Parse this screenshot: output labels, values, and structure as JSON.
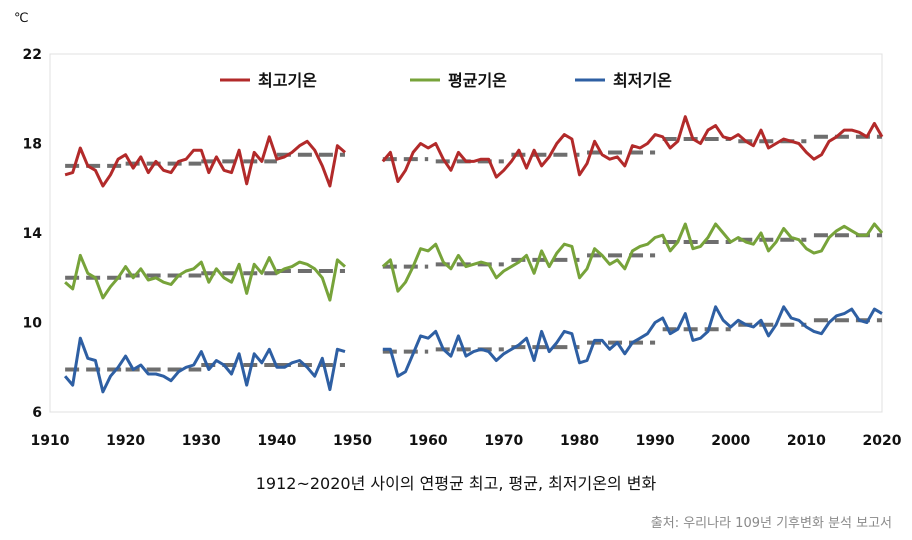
{
  "chart_data": {
    "type": "line",
    "unit_label": "℃",
    "ylim": [
      6,
      22
    ],
    "yticks": [
      6,
      10,
      14,
      18,
      22
    ],
    "xlim": [
      1910,
      2020
    ],
    "xticks": [
      1910,
      1920,
      1930,
      1940,
      1950,
      1960,
      1970,
      1980,
      1990,
      2000,
      2010,
      2020
    ],
    "legend_position": "top",
    "grid": false,
    "note": "No data plotted for 1949–1953",
    "series": [
      {
        "name": "최고기온",
        "color": "#b22a2a",
        "trend_color": "#6e6e6e",
        "segments": [
          {
            "x": [
              1912,
              1913,
              1914,
              1915,
              1916,
              1917,
              1918,
              1919,
              1920,
              1921,
              1922,
              1923,
              1924,
              1925,
              1926,
              1927,
              1928,
              1929,
              1930,
              1931,
              1932,
              1933,
              1934,
              1935,
              1936,
              1937,
              1938,
              1939,
              1940,
              1941,
              1942,
              1943,
              1944,
              1945,
              1946,
              1947,
              1948,
              1949
            ],
            "y": [
              16.6,
              16.7,
              17.8,
              17.0,
              16.8,
              16.1,
              16.6,
              17.3,
              17.5,
              16.9,
              17.4,
              16.7,
              17.2,
              16.8,
              16.7,
              17.2,
              17.3,
              17.7,
              17.7,
              16.7,
              17.4,
              16.8,
              16.7,
              17.7,
              16.2,
              17.6,
              17.2,
              18.3,
              17.3,
              17.4,
              17.6,
              17.9,
              18.1,
              17.7,
              17.0,
              16.1,
              17.9,
              17.6
            ]
          },
          {
            "x": [
              1954,
              1955,
              1956,
              1957,
              1958,
              1959,
              1960,
              1961,
              1962,
              1963,
              1964,
              1965,
              1966,
              1967,
              1968,
              1969,
              1970,
              1971,
              1972,
              1973,
              1974,
              1975,
              1976,
              1977,
              1978,
              1979,
              1980,
              1981,
              1982,
              1983,
              1984,
              1985,
              1986,
              1987,
              1988,
              1989,
              1990,
              1991,
              1992,
              1993,
              1994,
              1995,
              1996,
              1997,
              1998,
              1999,
              2000,
              2001,
              2002,
              2003,
              2004,
              2005,
              2006,
              2007,
              2008,
              2009,
              2010,
              2011,
              2012,
              2013,
              2014,
              2015,
              2016,
              2017,
              2018,
              2019,
              2020
            ],
            "y": [
              17.2,
              17.6,
              16.3,
              16.8,
              17.6,
              18.0,
              17.8,
              18.0,
              17.3,
              16.8,
              17.6,
              17.2,
              17.2,
              17.3,
              17.3,
              16.5,
              16.8,
              17.2,
              17.7,
              16.9,
              17.7,
              17.0,
              17.4,
              18.0,
              18.4,
              18.2,
              16.6,
              17.1,
              18.1,
              17.5,
              17.3,
              17.4,
              17.0,
              17.9,
              17.8,
              18.0,
              18.4,
              18.3,
              17.8,
              18.1,
              19.2,
              18.2,
              18.0,
              18.6,
              18.8,
              18.3,
              18.2,
              18.4,
              18.1,
              17.9,
              18.6,
              17.8,
              18.0,
              18.2,
              18.1,
              18.0,
              17.6,
              17.3,
              17.5,
              18.1,
              18.3,
              18.6,
              18.6,
              18.5,
              18.3,
              18.9,
              18.3
            ]
          }
        ],
        "trend": [
          {
            "x": [
              1912,
              1920
            ],
            "y": 17.0
          },
          {
            "x": [
              1920,
              1930
            ],
            "y": 17.1
          },
          {
            "x": [
              1930,
              1940
            ],
            "y": 17.2
          },
          {
            "x": [
              1940,
              1949
            ],
            "y": 17.5
          },
          {
            "x": [
              1954,
              1960
            ],
            "y": 17.3
          },
          {
            "x": [
              1961,
              1970
            ],
            "y": 17.2
          },
          {
            "x": [
              1971,
              1980
            ],
            "y": 17.5
          },
          {
            "x": [
              1981,
              1990
            ],
            "y": 17.6
          },
          {
            "x": [
              1991,
              2000
            ],
            "y": 18.2
          },
          {
            "x": [
              2001,
              2010
            ],
            "y": 18.1
          },
          {
            "x": [
              2011,
              2020
            ],
            "y": 18.3
          }
        ]
      },
      {
        "name": "평균기온",
        "color": "#77a33a",
        "trend_color": "#6e6e6e",
        "segments": [
          {
            "x": [
              1912,
              1913,
              1914,
              1915,
              1916,
              1917,
              1918,
              1919,
              1920,
              1921,
              1922,
              1923,
              1924,
              1925,
              1926,
              1927,
              1928,
              1929,
              1930,
              1931,
              1932,
              1933,
              1934,
              1935,
              1936,
              1937,
              1938,
              1939,
              1940,
              1941,
              1942,
              1943,
              1944,
              1945,
              1946,
              1947,
              1948,
              1949
            ],
            "y": [
              11.8,
              11.5,
              13.0,
              12.2,
              12.0,
              11.1,
              11.6,
              12.0,
              12.5,
              12.0,
              12.4,
              11.9,
              12.0,
              11.8,
              11.7,
              12.1,
              12.3,
              12.4,
              12.7,
              11.8,
              12.4,
              12.0,
              11.8,
              12.6,
              11.3,
              12.6,
              12.2,
              12.9,
              12.2,
              12.4,
              12.5,
              12.7,
              12.6,
              12.4,
              12.0,
              11.0,
              12.8,
              12.5
            ]
          },
          {
            "x": [
              1954,
              1955,
              1956,
              1957,
              1958,
              1959,
              1960,
              1961,
              1962,
              1963,
              1964,
              1965,
              1966,
              1967,
              1968,
              1969,
              1970,
              1971,
              1972,
              1973,
              1974,
              1975,
              1976,
              1977,
              1978,
              1979,
              1980,
              1981,
              1982,
              1983,
              1984,
              1985,
              1986,
              1987,
              1988,
              1989,
              1990,
              1991,
              1992,
              1993,
              1994,
              1995,
              1996,
              1997,
              1998,
              1999,
              2000,
              2001,
              2002,
              2003,
              2004,
              2005,
              2006,
              2007,
              2008,
              2009,
              2010,
              2011,
              2012,
              2013,
              2014,
              2015,
              2016,
              2017,
              2018,
              2019,
              2020
            ],
            "y": [
              12.5,
              12.8,
              11.4,
              11.8,
              12.5,
              13.3,
              13.2,
              13.5,
              12.7,
              12.4,
              13.0,
              12.5,
              12.6,
              12.7,
              12.6,
              12.0,
              12.3,
              12.5,
              12.7,
              13.0,
              12.2,
              13.2,
              12.5,
              13.1,
              13.5,
              13.4,
              12.0,
              12.4,
              13.3,
              13.0,
              12.6,
              12.8,
              12.4,
              13.2,
              13.4,
              13.5,
              13.8,
              13.9,
              13.2,
              13.6,
              14.4,
              13.3,
              13.4,
              13.8,
              14.4,
              14.0,
              13.6,
              13.8,
              13.6,
              13.5,
              14.0,
              13.2,
              13.6,
              14.2,
              13.8,
              13.7,
              13.3,
              13.1,
              13.2,
              13.8,
              14.1,
              14.3,
              14.1,
              13.9,
              13.9,
              14.4,
              14.0
            ]
          }
        ],
        "trend": [
          {
            "x": [
              1912,
              1920
            ],
            "y": 12.0
          },
          {
            "x": [
              1920,
              1930
            ],
            "y": 12.1
          },
          {
            "x": [
              1930,
              1940
            ],
            "y": 12.2
          },
          {
            "x": [
              1940,
              1949
            ],
            "y": 12.3
          },
          {
            "x": [
              1954,
              1960
            ],
            "y": 12.5
          },
          {
            "x": [
              1961,
              1970
            ],
            "y": 12.6
          },
          {
            "x": [
              1971,
              1980
            ],
            "y": 12.8
          },
          {
            "x": [
              1981,
              1990
            ],
            "y": 13.0
          },
          {
            "x": [
              1991,
              2000
            ],
            "y": 13.6
          },
          {
            "x": [
              2001,
              2010
            ],
            "y": 13.7
          },
          {
            "x": [
              2011,
              2020
            ],
            "y": 13.9
          }
        ]
      },
      {
        "name": "최저기온",
        "color": "#2e5fa3",
        "trend_color": "#6e6e6e",
        "segments": [
          {
            "x": [
              1912,
              1913,
              1914,
              1915,
              1916,
              1917,
              1918,
              1919,
              1920,
              1921,
              1922,
              1923,
              1924,
              1925,
              1926,
              1927,
              1928,
              1929,
              1930,
              1931,
              1932,
              1933,
              1934,
              1935,
              1936,
              1937,
              1938,
              1939,
              1940,
              1941,
              1942,
              1943,
              1944,
              1945,
              1946,
              1947,
              1948,
              1949
            ],
            "y": [
              7.6,
              7.2,
              9.3,
              8.4,
              8.3,
              6.9,
              7.6,
              8.0,
              8.5,
              7.9,
              8.1,
              7.7,
              7.7,
              7.6,
              7.4,
              7.8,
              8.0,
              8.1,
              8.7,
              7.9,
              8.3,
              8.1,
              7.7,
              8.6,
              7.2,
              8.6,
              8.2,
              8.8,
              8.0,
              8.0,
              8.2,
              8.3,
              8.0,
              7.6,
              8.4,
              7.0,
              8.8,
              8.7
            ]
          },
          {
            "x": [
              1954,
              1955,
              1956,
              1957,
              1958,
              1959,
              1960,
              1961,
              1962,
              1963,
              1964,
              1965,
              1966,
              1967,
              1968,
              1969,
              1970,
              1971,
              1972,
              1973,
              1974,
              1975,
              1976,
              1977,
              1978,
              1979,
              1980,
              1981,
              1982,
              1983,
              1984,
              1985,
              1986,
              1987,
              1988,
              1989,
              1990,
              1991,
              1992,
              1993,
              1994,
              1995,
              1996,
              1997,
              1998,
              1999,
              2000,
              2001,
              2002,
              2003,
              2004,
              2005,
              2006,
              2007,
              2008,
              2009,
              2010,
              2011,
              2012,
              2013,
              2014,
              2015,
              2016,
              2017,
              2018,
              2019,
              2020
            ],
            "y": [
              8.8,
              8.8,
              7.6,
              7.8,
              8.6,
              9.4,
              9.3,
              9.6,
              8.8,
              8.5,
              9.4,
              8.5,
              8.7,
              8.8,
              8.7,
              8.3,
              8.6,
              8.8,
              9.0,
              9.3,
              8.3,
              9.6,
              8.7,
              9.1,
              9.6,
              9.5,
              8.2,
              8.3,
              9.2,
              9.2,
              8.8,
              9.1,
              8.6,
              9.1,
              9.3,
              9.5,
              10.0,
              10.2,
              9.5,
              9.7,
              10.4,
              9.2,
              9.3,
              9.6,
              10.7,
              10.1,
              9.8,
              10.1,
              9.9,
              9.8,
              10.1,
              9.4,
              9.9,
              10.7,
              10.2,
              10.1,
              9.8,
              9.6,
              9.5,
              10.0,
              10.3,
              10.4,
              10.6,
              10.1,
              10.0,
              10.6,
              10.4
            ]
          }
        ],
        "trend": [
          {
            "x": [
              1912,
              1920
            ],
            "y": 7.9
          },
          {
            "x": [
              1920,
              1930
            ],
            "y": 7.9
          },
          {
            "x": [
              1930,
              1940
            ],
            "y": 8.1
          },
          {
            "x": [
              1940,
              1949
            ],
            "y": 8.1
          },
          {
            "x": [
              1954,
              1960
            ],
            "y": 8.7
          },
          {
            "x": [
              1961,
              1970
            ],
            "y": 8.8
          },
          {
            "x": [
              1971,
              1980
            ],
            "y": 8.9
          },
          {
            "x": [
              1981,
              1990
            ],
            "y": 9.1
          },
          {
            "x": [
              1991,
              2000
            ],
            "y": 9.7
          },
          {
            "x": [
              2001,
              2010
            ],
            "y": 9.9
          },
          {
            "x": [
              2011,
              2020
            ],
            "y": 10.1
          }
        ]
      }
    ]
  },
  "caption": "1912~2020년 사이의 연평균 최고, 평균, 최저기온의 변화",
  "source": "출처: 우리나라 109년 기후변화 분석 보고서"
}
